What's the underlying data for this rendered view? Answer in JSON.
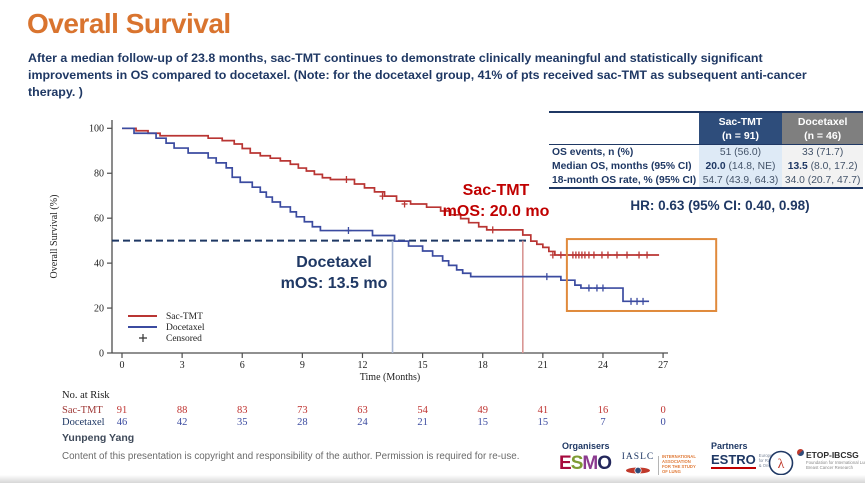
{
  "slide": {
    "title": "Overall Survival",
    "subtitle": "After a median follow-up of 23.8 months, sac-TMT continues to demonstrate clinically meaningful and statistically significant improvements in OS compared to docetaxel. (Note: for the docetaxel group, 41% of pts received sac-TMT as subsequent anti-cancer therapy. )"
  },
  "chart_data": {
    "type": "line",
    "subtype": "kaplan-meier-step",
    "xlabel": "Time (Months)",
    "ylabel": "Overall Survival  (%)",
    "xlim": [
      0,
      27
    ],
    "ylim": [
      0,
      100
    ],
    "xticks": [
      0,
      3,
      6,
      9,
      12,
      15,
      18,
      21,
      24,
      27
    ],
    "yticks": [
      0,
      20,
      40,
      60,
      80,
      100
    ],
    "grid": false,
    "legend_position": "lower-left-inside",
    "series": [
      {
        "name": "Sac-TMT",
        "color": "#b93533",
        "steps": [
          [
            0,
            100
          ],
          [
            0.7,
            98.9
          ],
          [
            1.3,
            97.8
          ],
          [
            1.9,
            96.7
          ],
          [
            4.3,
            95.6
          ],
          [
            5.0,
            94.5
          ],
          [
            5.6,
            93.0
          ],
          [
            6.0,
            91.0
          ],
          [
            6.4,
            89.0
          ],
          [
            6.9,
            87.8
          ],
          [
            7.4,
            86.7
          ],
          [
            7.9,
            85.5
          ],
          [
            8.4,
            84.0
          ],
          [
            8.8,
            82.3
          ],
          [
            9.2,
            81.0
          ],
          [
            9.6,
            79.5
          ],
          [
            10.0,
            78.0
          ],
          [
            10.4,
            77.2
          ],
          [
            11.6,
            75.2
          ],
          [
            12.1,
            73.5
          ],
          [
            12.6,
            71.7
          ],
          [
            13.1,
            69.8
          ],
          [
            13.7,
            67.6
          ],
          [
            14.4,
            66.3
          ],
          [
            15.2,
            64.9
          ],
          [
            15.9,
            63.2
          ],
          [
            16.4,
            61.5
          ],
          [
            16.9,
            59.8
          ],
          [
            17.3,
            58.0
          ],
          [
            17.8,
            56.2
          ],
          [
            18.2,
            54.8
          ],
          [
            20.0,
            52.5
          ],
          [
            20.4,
            49.8
          ],
          [
            20.7,
            48.4
          ],
          [
            21.0,
            47.0
          ],
          [
            21.3,
            45.2
          ],
          [
            21.6,
            43.6
          ],
          [
            26.8,
            43.6
          ]
        ],
        "censors": [
          [
            11.2,
            77.2
          ],
          [
            13.0,
            69.8
          ],
          [
            14.1,
            66.3
          ],
          [
            18.5,
            54.8
          ],
          [
            21.5,
            43.6
          ],
          [
            21.9,
            43.6
          ],
          [
            22.2,
            43.6
          ],
          [
            22.5,
            43.6
          ],
          [
            22.65,
            43.6
          ],
          [
            22.8,
            43.6
          ],
          [
            22.95,
            43.6
          ],
          [
            23.1,
            43.6
          ],
          [
            23.3,
            43.6
          ],
          [
            23.55,
            43.6
          ],
          [
            23.95,
            43.6
          ],
          [
            24.25,
            43.6
          ],
          [
            24.7,
            43.6
          ],
          [
            25.2,
            43.6
          ],
          [
            25.8,
            43.6
          ],
          [
            26.2,
            43.6
          ]
        ]
      },
      {
        "name": "Docetaxel",
        "color": "#3b4ba0",
        "steps": [
          [
            0,
            100
          ],
          [
            0.6,
            97.8
          ],
          [
            1.7,
            95.6
          ],
          [
            2.2,
            93.4
          ],
          [
            2.6,
            91.2
          ],
          [
            3.3,
            89.0
          ],
          [
            4.3,
            86.8
          ],
          [
            4.7,
            84.6
          ],
          [
            5.2,
            82.4
          ],
          [
            5.5,
            78.2
          ],
          [
            5.9,
            76.0
          ],
          [
            6.5,
            73.8
          ],
          [
            6.9,
            71.6
          ],
          [
            7.2,
            69.4
          ],
          [
            7.5,
            67.2
          ],
          [
            7.9,
            65.0
          ],
          [
            8.4,
            62.8
          ],
          [
            8.7,
            60.6
          ],
          [
            9.1,
            58.4
          ],
          [
            9.5,
            56.2
          ],
          [
            9.9,
            54.5
          ],
          [
            12.5,
            52.3
          ],
          [
            13.6,
            49.8
          ],
          [
            14.3,
            47.6
          ],
          [
            15.0,
            45.4
          ],
          [
            15.5,
            43.2
          ],
          [
            16.0,
            41.0
          ],
          [
            16.3,
            39.0
          ],
          [
            16.7,
            37.0
          ],
          [
            17.0,
            35.5
          ],
          [
            17.4,
            34.0
          ],
          [
            21.9,
            32.4
          ],
          [
            22.6,
            30.2
          ],
          [
            22.9,
            28.9
          ],
          [
            25.0,
            23.0
          ],
          [
            26.3,
            23.0
          ]
        ],
        "censors": [
          [
            11.3,
            54.5
          ],
          [
            21.2,
            34.0
          ],
          [
            23.3,
            28.9
          ],
          [
            23.7,
            28.9
          ],
          [
            24.0,
            28.9
          ],
          [
            25.4,
            23.0
          ],
          [
            25.7,
            23.0
          ],
          [
            26.0,
            23.0
          ]
        ]
      }
    ],
    "censored_label": "Censored",
    "reference_lines": {
      "horizontal_pct": 50,
      "vline_docetaxel_months": 13.5,
      "vline_sactmt_months": 20.0
    },
    "highlight_box": {
      "t1": 22.2,
      "t2": 29.65,
      "pct_top": 50.7,
      "pct_bottom": 18.7
    },
    "no_at_risk": {
      "title": "No. at Risk",
      "rows": [
        {
          "name": "Sac-TMT",
          "label_color": "#9e3634",
          "value_color": "#bf3330",
          "values": [
            "91",
            "88",
            "83",
            "73",
            "63",
            "54",
            "49",
            "41",
            "16",
            "0"
          ]
        },
        {
          "name": "Docetaxel",
          "label_color": "#1f3864",
          "value_color": "#3b4ba0",
          "values": [
            "46",
            "42",
            "35",
            "28",
            "24",
            "21",
            "15",
            "15",
            "7",
            "0"
          ]
        }
      ]
    }
  },
  "annotations": {
    "sac_line1": "Sac-TMT",
    "sac_line2": "mOS: 20.0 mo",
    "doc_line1": "Docetaxel",
    "doc_line2": "mOS: 13.5 mo"
  },
  "table": {
    "header": {
      "sac_name": "Sac-TMT",
      "sac_n": "(n = 91)",
      "doc_name": "Docetaxel",
      "doc_n": "(n = 46)"
    },
    "rows": [
      {
        "label": "OS events, n (%)",
        "sac_bold": "",
        "sac": "51 (56.0)",
        "doc_bold": "",
        "doc": "33 (71.7)"
      },
      {
        "label": "Median OS, months (95% CI)",
        "sac_bold": "20.0",
        "sac": " (14.8, NE)",
        "doc_bold": "13.5",
        "doc": " (8.0, 17.2)"
      },
      {
        "label": "18-month OS rate, % (95% CI)",
        "sac_bold": "",
        "sac": "54.7 (43.9, 64.3)",
        "doc_bold": "",
        "doc": "34.0 (20.7, 47.7)"
      }
    ],
    "hr_text": "HR: 0.63 (95% CI: 0.40, 0.98)"
  },
  "footer": {
    "author": "Yunpeng Yang",
    "copyright": "Content of this presentation is copyright and responsibility of the author. Permission is required for re-use.",
    "organisers_label": "Organisers",
    "partners_label": "Partners",
    "esmo_letters": [
      "E",
      "S",
      "M",
      "O"
    ],
    "esmo_colors": [
      "#a6093d",
      "#7e9b34",
      "#8b3a8f",
      "#23275b"
    ],
    "iaslc_name": "IASLC",
    "iaslc_tagline": "International Association for the Study of Lung Cancer",
    "estro_name": "ESTRO",
    "estro_tagline": "European Society for Radiotherapy & Oncology",
    "etop_name": "ETOP-IBCSG",
    "etop_tagline": "Foundation for International Lung & Breast Cancer Research",
    "partner_circle_glyph": "λ"
  },
  "colors": {
    "title_orange": "#d9742f",
    "navy": "#1f3864",
    "axis": "#4d4d4d",
    "dashed_median": "#1f3864",
    "ref_blue": "#a9b8d6",
    "ref_red": "#d99694",
    "highlight_orange": "#e08a3c"
  }
}
